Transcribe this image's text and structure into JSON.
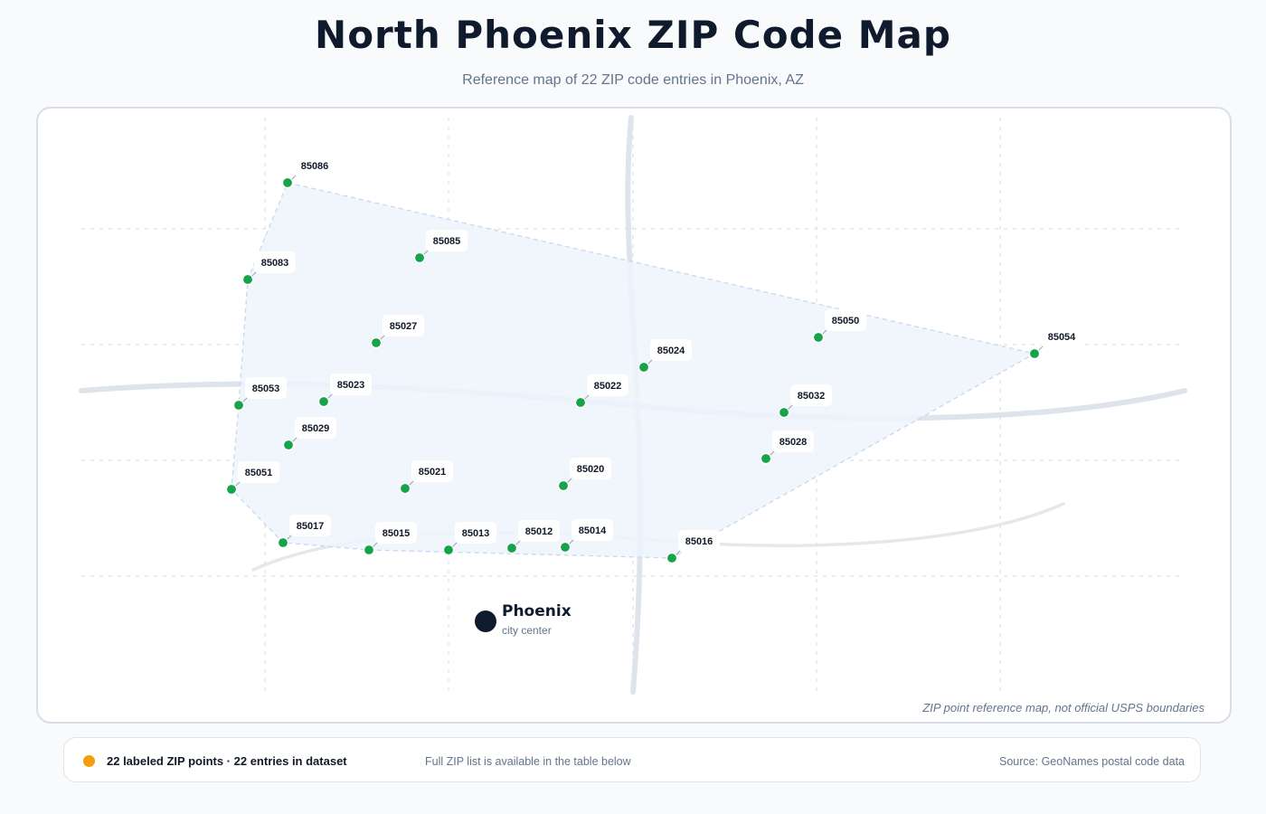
{
  "header": {
    "title": "North Phoenix ZIP Code Map",
    "subtitle": "Reference map of 22 ZIP code entries in Phoenix, AZ"
  },
  "map": {
    "note": "ZIP point reference map, not official USPS boundaries",
    "city": {
      "name": "Phoenix",
      "label": "city center"
    },
    "colors": {
      "point": "#16a34a",
      "hull_fill": "#eef4fd",
      "hull_stroke": "#c7d8f0",
      "road": "#dfe4ec",
      "city": "#0f1b2d"
    },
    "zip_points": [
      {
        "zip": "85086"
      },
      {
        "zip": "85083"
      },
      {
        "zip": "85085"
      },
      {
        "zip": "85027"
      },
      {
        "zip": "85050"
      },
      {
        "zip": "85054"
      },
      {
        "zip": "85024"
      },
      {
        "zip": "85053"
      },
      {
        "zip": "85023"
      },
      {
        "zip": "85022"
      },
      {
        "zip": "85032"
      },
      {
        "zip": "85029"
      },
      {
        "zip": "85028"
      },
      {
        "zip": "85051"
      },
      {
        "zip": "85021"
      },
      {
        "zip": "85020"
      },
      {
        "zip": "85017"
      },
      {
        "zip": "85015"
      },
      {
        "zip": "85013"
      },
      {
        "zip": "85012"
      },
      {
        "zip": "85014"
      },
      {
        "zip": "85016"
      }
    ]
  },
  "footer": {
    "count_text": "22 labeled ZIP points · 22 entries in dataset",
    "list_note": "Full ZIP list is available in the table below",
    "source": "Source: GeoNames postal code data",
    "dot_color": "#f59e0b"
  }
}
